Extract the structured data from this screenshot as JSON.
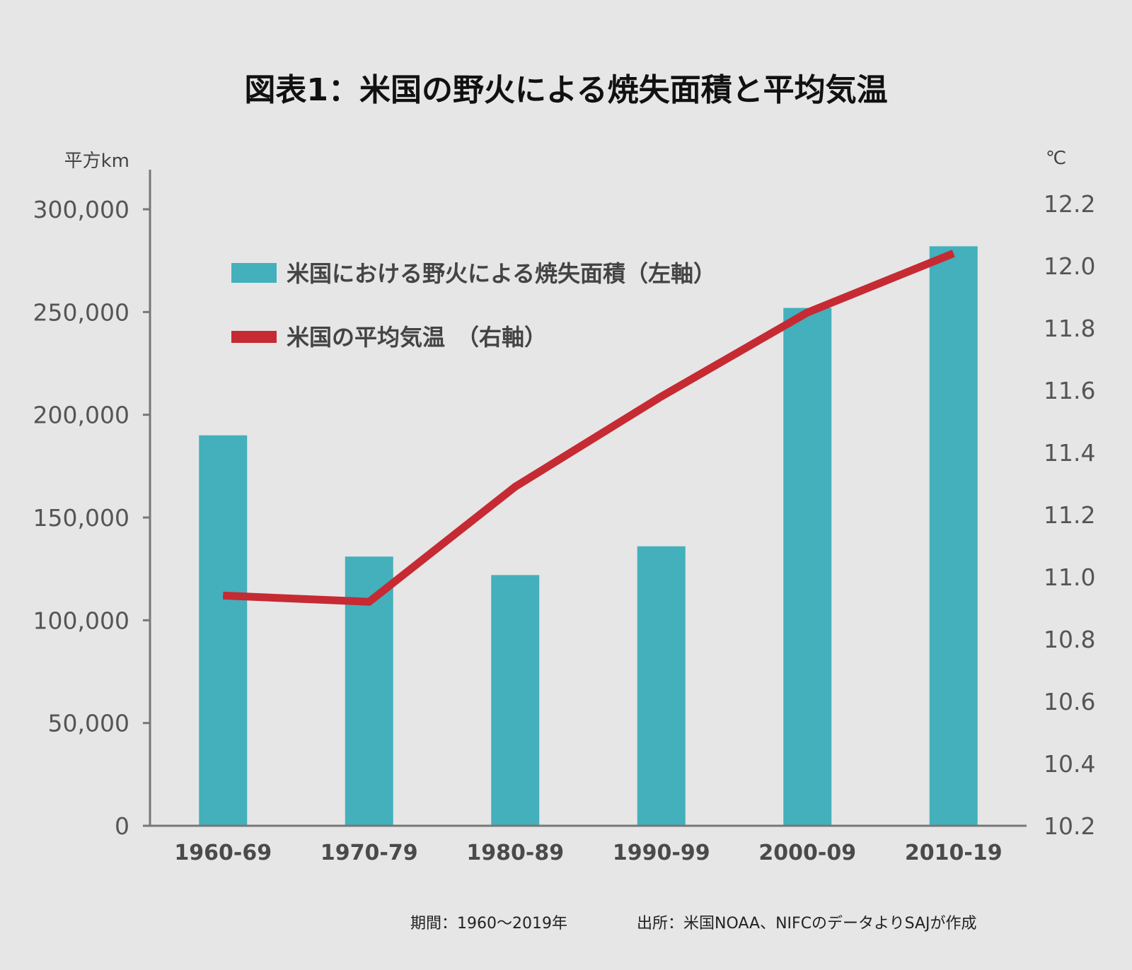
{
  "chart_data": {
    "type": "bar+line",
    "title": "図表1：米国の野火による焼失面積と平均気温",
    "categories": [
      "1960-69",
      "1970-79",
      "1980-89",
      "1990-99",
      "2000-09",
      "2010-19"
    ],
    "left_axis": {
      "unit": "平方km",
      "ylim": [
        0,
        320000
      ],
      "ticks": [
        0,
        50000,
        100000,
        150000,
        200000,
        250000,
        300000
      ],
      "tick_labels": [
        "0",
        "50,000",
        "100,000",
        "150,000",
        "200,000",
        "250,000",
        "300,000"
      ]
    },
    "right_axis": {
      "unit": "℃",
      "ylim": [
        10.2,
        12.3
      ],
      "ticks": [
        10.2,
        10.4,
        10.6,
        10.8,
        11.0,
        11.2,
        11.4,
        11.6,
        11.8,
        12.0,
        12.2
      ],
      "tick_labels": [
        "10.2",
        "10.4",
        "10.6",
        "10.8",
        "11.0",
        "11.2",
        "11.4",
        "11.6",
        "11.8",
        "12.0",
        "12.2"
      ]
    },
    "series": [
      {
        "name": "米国における野火による焼失面積（左軸）",
        "type": "bar",
        "axis": "left",
        "color": "#43b0bc",
        "values": [
          190000,
          131000,
          122000,
          136000,
          252000,
          282000
        ]
      },
      {
        "name": "米国の平均気温　（右軸）",
        "type": "line",
        "axis": "right",
        "color": "#c62a33",
        "values": [
          10.94,
          10.92,
          11.29,
          11.58,
          11.85,
          12.04
        ]
      }
    ],
    "legend_position": "top-left",
    "grid": false
  },
  "footer": {
    "period": "期間：1960〜2019年",
    "source": "出所：米国NOAA、NIFCのデータよりSAJが作成"
  },
  "colors": {
    "background": "#e6e6e6",
    "bar": "#43b0bc",
    "line": "#c62a33",
    "axis": "#777777"
  }
}
